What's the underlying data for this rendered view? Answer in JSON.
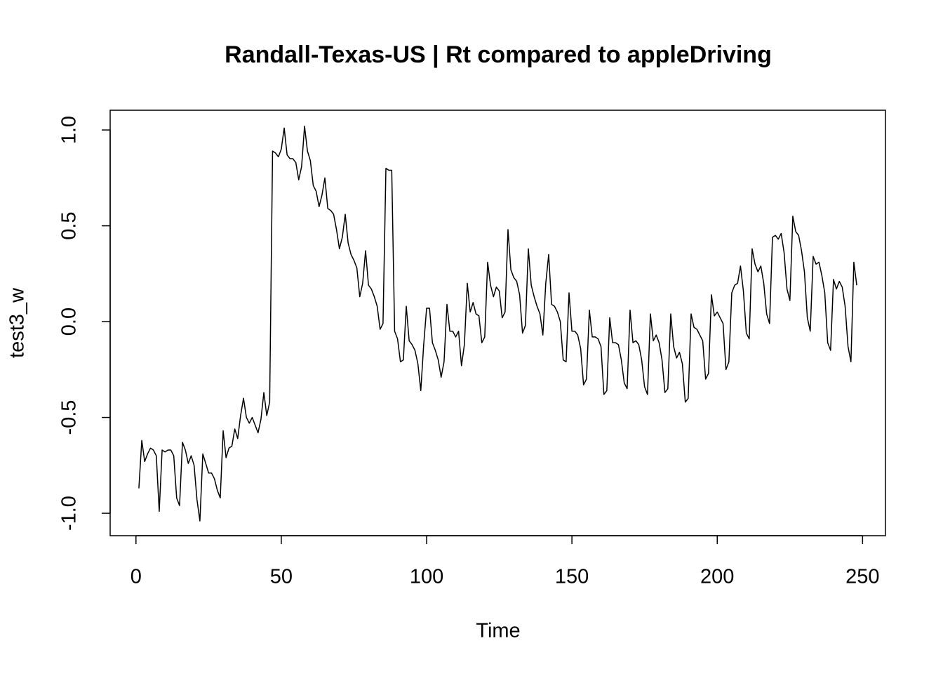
{
  "chart_data": {
    "type": "line",
    "title": "Randall-Texas-US | Rt compared to appleDriving",
    "xlabel": "Time",
    "ylabel": "test3_w",
    "color": "#000000",
    "xlim": [
      -8.88,
      257.88
    ],
    "ylim": [
      -1.117,
      1.103
    ],
    "xticks": [
      0,
      50,
      100,
      150,
      200,
      250
    ],
    "yticks": [
      {
        "value": -1,
        "label": "-1.0"
      },
      -0.5,
      {
        "value": 0,
        "label": "0.0"
      },
      0.5,
      {
        "value": 1,
        "label": "1.0"
      }
    ],
    "x": [
      1,
      2,
      3,
      4,
      5,
      6,
      7,
      8,
      9,
      10,
      11,
      12,
      13,
      14,
      15,
      16,
      17,
      18,
      19,
      20,
      21,
      22,
      23,
      24,
      25,
      26,
      27,
      28,
      29,
      30,
      31,
      32,
      33,
      34,
      35,
      36,
      37,
      38,
      39,
      40,
      41,
      42,
      43,
      44,
      45,
      46,
      47,
      48,
      49,
      50,
      51,
      52,
      53,
      54,
      55,
      56,
      57,
      58,
      59,
      60,
      61,
      62,
      63,
      64,
      65,
      66,
      67,
      68,
      69,
      70,
      71,
      72,
      73,
      74,
      75,
      76,
      77,
      78,
      79,
      80,
      81,
      82,
      83,
      84,
      85,
      86,
      87,
      88,
      89,
      90,
      91,
      92,
      93,
      94,
      95,
      96,
      97,
      98,
      99,
      100,
      101,
      102,
      103,
      104,
      105,
      106,
      107,
      108,
      109,
      110,
      111,
      112,
      113,
      114,
      115,
      116,
      117,
      118,
      119,
      120,
      121,
      122,
      123,
      124,
      125,
      126,
      127,
      128,
      129,
      130,
      131,
      132,
      133,
      134,
      135,
      136,
      137,
      138,
      139,
      140,
      141,
      142,
      143,
      144,
      145,
      146,
      147,
      148,
      149,
      150,
      151,
      152,
      153,
      154,
      155,
      156,
      157,
      158,
      159,
      160,
      161,
      162,
      163,
      164,
      165,
      166,
      167,
      168,
      169,
      170,
      171,
      172,
      173,
      174,
      175,
      176,
      177,
      178,
      179,
      180,
      181,
      182,
      183,
      184,
      185,
      186,
      187,
      188,
      189,
      190,
      191,
      192,
      193,
      194,
      195,
      196,
      197,
      198,
      199,
      200,
      201,
      202,
      203,
      204,
      205,
      206,
      207,
      208,
      209,
      210,
      211,
      212,
      213,
      214,
      215,
      216,
      217,
      218,
      219,
      220,
      221,
      222,
      223,
      224,
      225,
      226,
      227,
      228,
      229,
      230,
      231,
      232,
      233,
      234,
      235,
      236,
      237,
      238,
      239,
      240,
      241,
      242,
      243,
      244,
      245,
      246,
      247,
      248
    ],
    "values": [
      -0.87,
      -0.62,
      -0.73,
      -0.69,
      -0.66,
      -0.67,
      -0.7,
      -0.99,
      -0.67,
      -0.68,
      -0.67,
      -0.67,
      -0.7,
      -0.92,
      -0.96,
      -0.63,
      -0.67,
      -0.74,
      -0.7,
      -0.75,
      -0.93,
      -1.04,
      -0.69,
      -0.74,
      -0.79,
      -0.79,
      -0.82,
      -0.88,
      -0.92,
      -0.57,
      -0.71,
      -0.66,
      -0.65,
      -0.56,
      -0.61,
      -0.49,
      -0.4,
      -0.5,
      -0.53,
      -0.5,
      -0.54,
      -0.58,
      -0.51,
      -0.37,
      -0.49,
      -0.42,
      0.89,
      0.88,
      0.86,
      0.9,
      1.01,
      0.87,
      0.85,
      0.85,
      0.83,
      0.74,
      0.81,
      1.02,
      0.89,
      0.84,
      0.71,
      0.68,
      0.6,
      0.66,
      0.75,
      0.59,
      0.58,
      0.56,
      0.48,
      0.38,
      0.44,
      0.56,
      0.41,
      0.35,
      0.32,
      0.28,
      0.13,
      0.2,
      0.37,
      0.19,
      0.17,
      0.13,
      0.08,
      -0.04,
      -0.01,
      0.8,
      0.79,
      0.79,
      -0.05,
      -0.09,
      -0.21,
      -0.2,
      0.08,
      -0.1,
      -0.12,
      -0.15,
      -0.22,
      -0.36,
      -0.12,
      0.07,
      0.07,
      -0.11,
      -0.15,
      -0.2,
      -0.29,
      -0.21,
      0.09,
      -0.05,
      -0.05,
      -0.08,
      -0.05,
      -0.23,
      -0.12,
      0.2,
      0.05,
      0.1,
      0.04,
      0.03,
      -0.11,
      -0.08,
      0.31,
      0.19,
      0.13,
      0.18,
      0.16,
      0.02,
      0.05,
      0.48,
      0.27,
      0.23,
      0.21,
      0.14,
      -0.06,
      -0.02,
      0.38,
      0.19,
      0.13,
      0.08,
      0.04,
      -0.07,
      0.2,
      0.35,
      0.09,
      0.08,
      0.05,
      0.0,
      -0.2,
      -0.21,
      0.15,
      -0.05,
      -0.05,
      -0.07,
      -0.14,
      -0.33,
      -0.3,
      0.06,
      -0.08,
      -0.08,
      -0.09,
      -0.13,
      -0.38,
      -0.36,
      0.02,
      -0.11,
      -0.11,
      -0.12,
      -0.2,
      -0.32,
      -0.35,
      0.06,
      -0.11,
      -0.1,
      -0.12,
      -0.2,
      -0.34,
      -0.38,
      0.04,
      -0.1,
      -0.07,
      -0.11,
      -0.2,
      -0.37,
      -0.35,
      0.04,
      -0.13,
      -0.19,
      -0.16,
      -0.22,
      -0.42,
      -0.4,
      0.04,
      -0.03,
      -0.04,
      -0.07,
      -0.1,
      -0.3,
      -0.27,
      0.14,
      0.03,
      0.05,
      0.02,
      -0.01,
      -0.25,
      -0.21,
      0.15,
      0.19,
      0.2,
      0.29,
      0.16,
      -0.06,
      -0.09,
      0.38,
      0.3,
      0.26,
      0.29,
      0.2,
      0.04,
      -0.01,
      0.44,
      0.45,
      0.43,
      0.46,
      0.36,
      0.17,
      0.11,
      0.55,
      0.47,
      0.45,
      0.37,
      0.26,
      0.02,
      -0.05,
      0.34,
      0.3,
      0.31,
      0.24,
      0.15,
      -0.11,
      -0.15,
      0.22,
      0.17,
      0.21,
      0.18,
      0.08,
      -0.13,
      -0.21,
      0.31,
      0.19
    ]
  }
}
